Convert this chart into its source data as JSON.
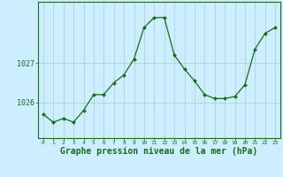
{
  "x": [
    0,
    1,
    2,
    3,
    4,
    5,
    6,
    7,
    8,
    9,
    10,
    11,
    12,
    13,
    14,
    15,
    16,
    17,
    18,
    19,
    20,
    21,
    22,
    23
  ],
  "y": [
    1025.7,
    1025.5,
    1025.6,
    1025.5,
    1025.8,
    1026.2,
    1026.2,
    1026.5,
    1026.7,
    1027.1,
    1027.9,
    1028.15,
    1028.15,
    1027.2,
    1026.85,
    1026.55,
    1026.2,
    1026.1,
    1026.1,
    1026.15,
    1026.45,
    1027.35,
    1027.75,
    1027.9
  ],
  "line_color": "#1a6b1a",
  "marker_color": "#1a6b1a",
  "bg_color": "#cceeff",
  "grid_color": "#aacccc",
  "axis_color": "#1a6b1a",
  "xlabel": "Graphe pression niveau de la mer (hPa)",
  "xlabel_fontsize": 7,
  "ytick_labels": [
    "1026",
    "1027"
  ],
  "ytick_values": [
    1026,
    1027
  ],
  "ylim": [
    1025.1,
    1028.55
  ],
  "xlim": [
    -0.5,
    23.5
  ],
  "figsize": [
    3.2,
    2.0
  ],
  "dpi": 100
}
